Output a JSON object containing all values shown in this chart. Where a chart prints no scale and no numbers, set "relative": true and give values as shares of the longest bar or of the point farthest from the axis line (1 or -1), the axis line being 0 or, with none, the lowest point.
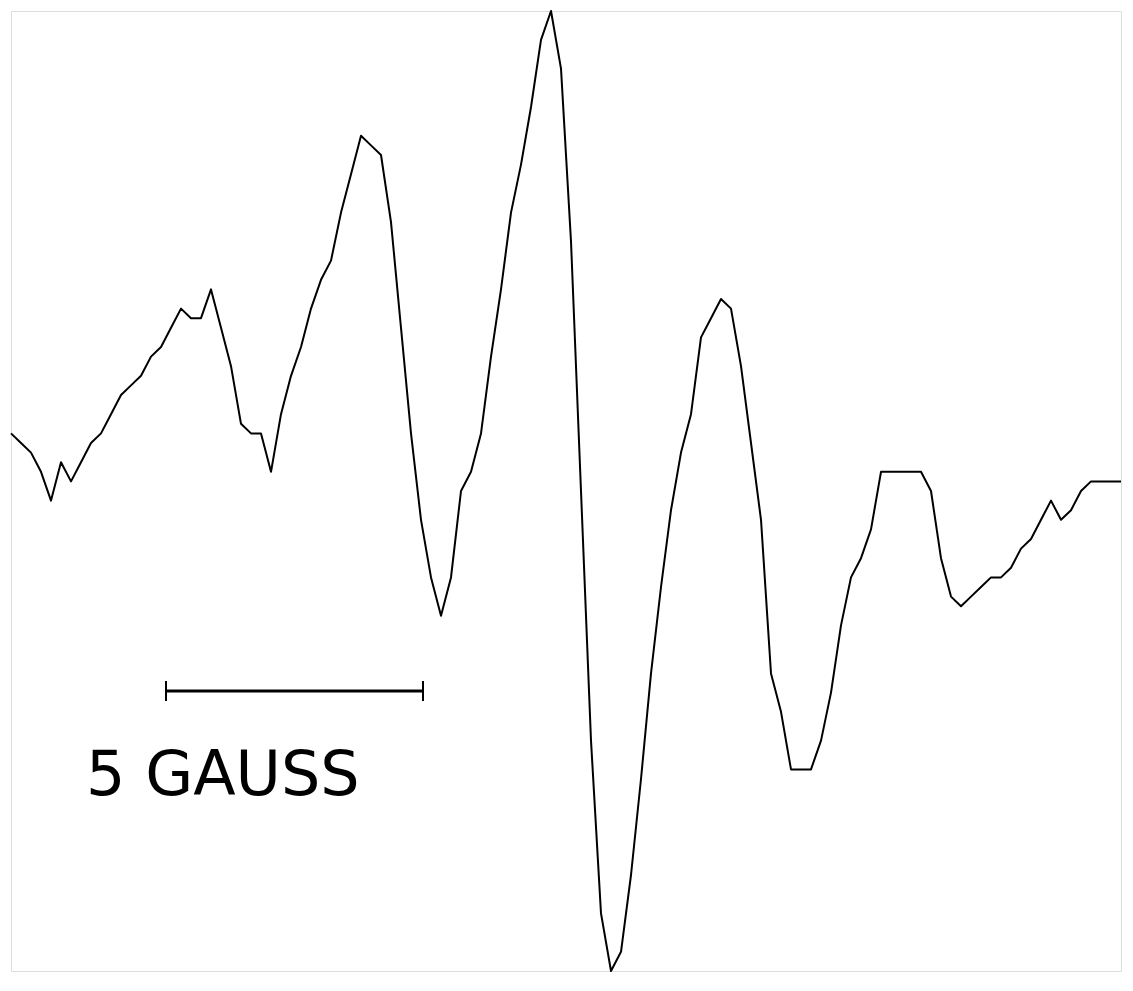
{
  "chart_data": {
    "type": "line",
    "relative": true,
    "categories": [
      null,
      null,
      null,
      null,
      null,
      null,
      null,
      null,
      null,
      null,
      null,
      null,
      null,
      null,
      null,
      null,
      null,
      null,
      null,
      null,
      null,
      null,
      null,
      null,
      null,
      null,
      null,
      null,
      null,
      null,
      null,
      null,
      null,
      null,
      null,
      null,
      null,
      null,
      null,
      null,
      null,
      null,
      null,
      null,
      null,
      null,
      null,
      null,
      null,
      null,
      null,
      null,
      null,
      null,
      null,
      null,
      null,
      null,
      null,
      null,
      null,
      null,
      null,
      null,
      null,
      null,
      null,
      null,
      null,
      null,
      null,
      null,
      null,
      null,
      null,
      null,
      null,
      null,
      null,
      null,
      null,
      null,
      null,
      null,
      null,
      null,
      null,
      null,
      null,
      null,
      null,
      null,
      null,
      null,
      null,
      null,
      null,
      null,
      null,
      null,
      null,
      null,
      null,
      null,
      null,
      null,
      null,
      null,
      null,
      null,
      null,
      null
    ],
    "series": [
      {
        "color": "#000000",
        "values": [
          0.56,
          0.55,
          0.54,
          0.52,
          0.49,
          0.53,
          0.51,
          0.53,
          0.55,
          0.56,
          0.58,
          0.6,
          0.61,
          0.62,
          0.64,
          0.65,
          0.67,
          0.69,
          0.68,
          0.68,
          0.71,
          0.67,
          0.63,
          0.57,
          0.56,
          0.56,
          0.52,
          0.58,
          0.62,
          0.65,
          0.69,
          0.72,
          0.74,
          0.79,
          0.83,
          0.87,
          0.86,
          0.85,
          0.78,
          0.67,
          0.56,
          0.47,
          0.41,
          0.37,
          0.41,
          0.5,
          0.52,
          0.56,
          0.64,
          0.71,
          0.79,
          0.84,
          0.9,
          0.97,
          1,
          0.94,
          0.76,
          0.5,
          0.24,
          0.06,
          0,
          0.02,
          0.1,
          0.2,
          0.31,
          0.4,
          0.48,
          0.54,
          0.58,
          0.66,
          0.68,
          0.7,
          0.69,
          0.63,
          0.55,
          0.47,
          0.31,
          0.27,
          0.21,
          0.21,
          0.21,
          0.24,
          0.29,
          0.36,
          0.41,
          0.43,
          0.46,
          0.52,
          0.52,
          0.52,
          0.52,
          0.52,
          0.5,
          0.43,
          0.39,
          0.38,
          0.39,
          0.4,
          0.41,
          0.41,
          0.42,
          0.44,
          0.45,
          0.47,
          0.49,
          0.47,
          0.48,
          0.5,
          0.51,
          0.51,
          0.51,
          0.51
        ]
      }
    ],
    "annotations": [
      "5 GAUSS"
    ]
  }
}
